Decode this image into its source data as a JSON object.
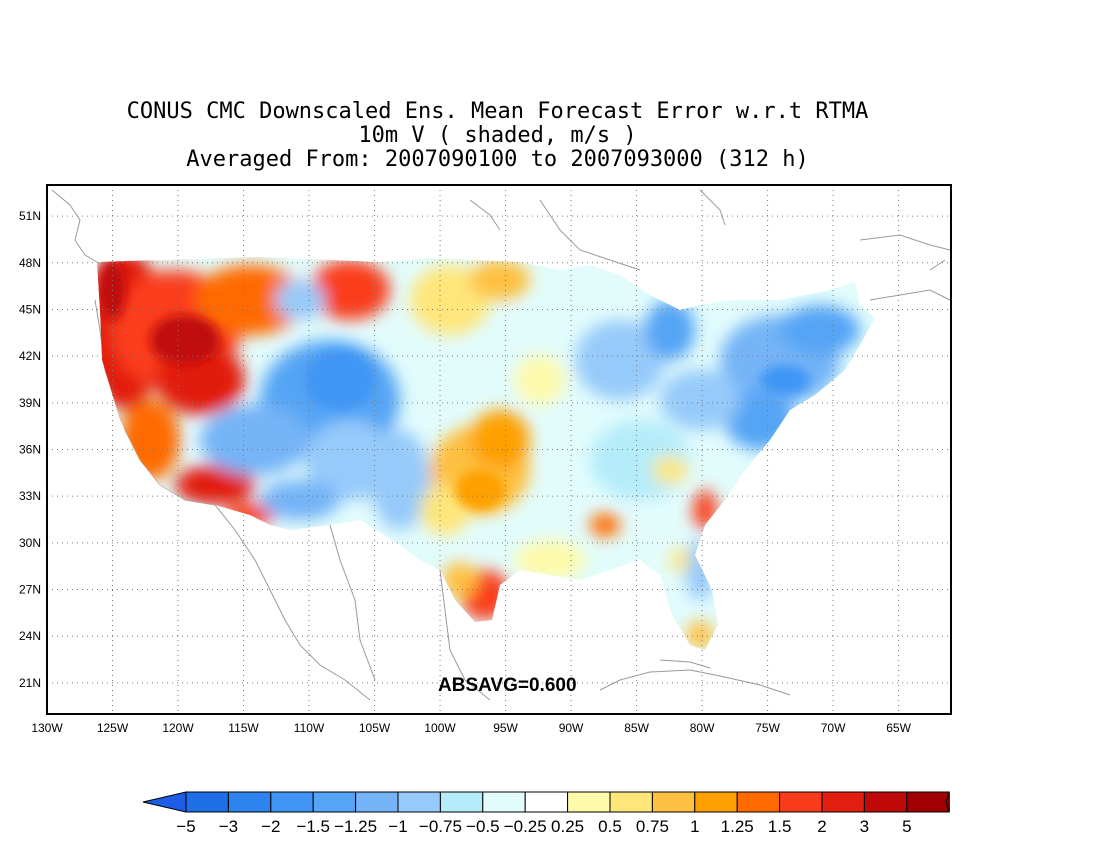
{
  "title": {
    "line1": "CONUS CMC Downscaled Ens. Mean Forecast Error w.r.t RTMA",
    "line2": "10m V ( shaded, m/s )",
    "line3": "Averaged From: 2007090100 to 2007093000 (312 h)"
  },
  "statistic": "ABSAVG=0.600",
  "map": {
    "projection": "lat-lon",
    "lon_range": [
      -130,
      -61
    ],
    "lat_range": [
      19,
      53
    ],
    "grid": "dotted",
    "lon_ticks": [
      "130W",
      "125W",
      "120W",
      "115W",
      "110W",
      "105W",
      "100W",
      "95W",
      "90W",
      "85W",
      "80W",
      "75W",
      "70W",
      "65W"
    ],
    "lat_ticks": [
      "51N",
      "48N",
      "45N",
      "42N",
      "39N",
      "36N",
      "33N",
      "30N",
      "27N",
      "24N",
      "21N"
    ]
  },
  "colorbar": {
    "labels": [
      "-5",
      "-3",
      "-2",
      "-1.5",
      "-1.25",
      "-1",
      "-0.75",
      "-0.5",
      "-0.25",
      "0.25",
      "0.5",
      "0.75",
      "1",
      "1.25",
      "1.5",
      "2",
      "3",
      "5"
    ],
    "colors": [
      "#1e6ee6",
      "#2e84ee",
      "#4196f5",
      "#55a4f5",
      "#74b4f7",
      "#96cafa",
      "#b4ecfa",
      "#e2fcfc",
      "#ffffff",
      "#fefaaa",
      "#fee67a",
      "#fec040",
      "#fea000",
      "#fe6a00",
      "#fa3c1c",
      "#e21e10",
      "#c00a0a",
      "#a00000"
    ],
    "left_arrow_color": "#1e5ce6",
    "right_arrow_color": "#960000"
  },
  "regions": [
    {
      "name": "pacific-northwest",
      "level": 3
    },
    {
      "name": "great-basin-north",
      "level": 2
    },
    {
      "name": "california-coast",
      "level": 1.5
    },
    {
      "name": "southern-california",
      "level": 3
    },
    {
      "name": "northern-rockies",
      "level": 2
    },
    {
      "name": "central-rockies",
      "level": -1.25
    },
    {
      "name": "southwest-desert",
      "level": -1
    },
    {
      "name": "southern-plains",
      "level": 1.25
    },
    {
      "name": "northern-plains",
      "level": 0.5
    },
    {
      "name": "south-texas",
      "level": 2
    },
    {
      "name": "great-lakes",
      "level": -1
    },
    {
      "name": "northeast",
      "level": -1.25
    },
    {
      "name": "mid-atlantic",
      "level": -1
    },
    {
      "name": "southeast",
      "level": -0.5
    },
    {
      "name": "carolina-coast",
      "level": 1.5
    },
    {
      "name": "florida-tip",
      "level": 1
    }
  ]
}
